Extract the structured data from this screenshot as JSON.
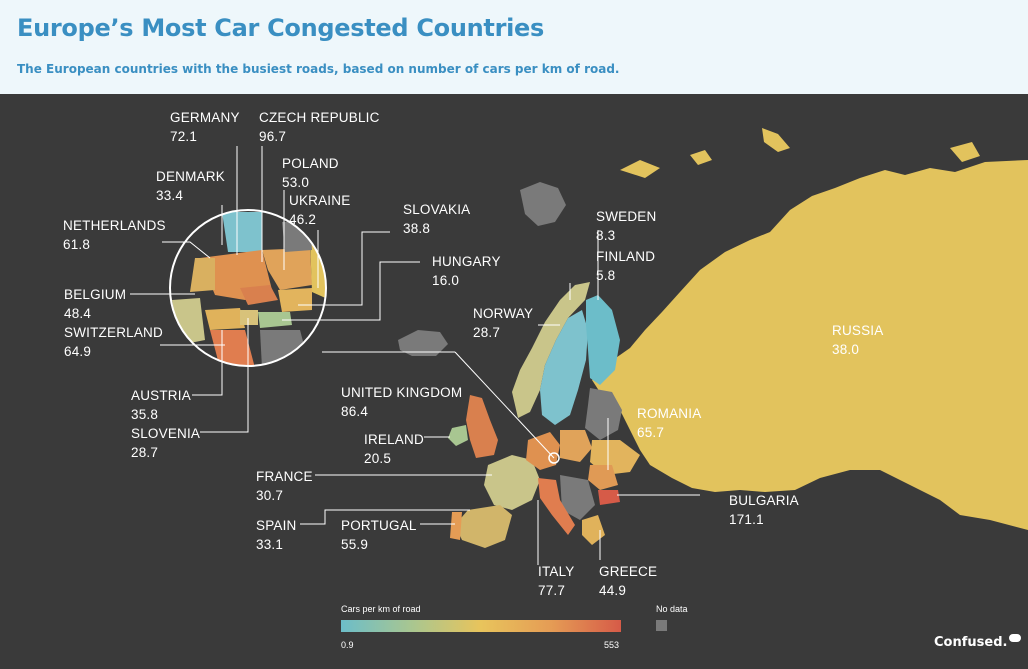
{
  "title": "Europe’s Most Car Congested Countries",
  "subtitle": "The European countries with the busiest roads, based on number of cars per km of road.",
  "countries": [
    {
      "name": "GERMANY",
      "value": "72.1"
    },
    {
      "name": "CZECH REPUBLIC",
      "value": "96.7"
    },
    {
      "name": "POLAND",
      "value": "53.0"
    },
    {
      "name": "DENMARK",
      "value": "33.4"
    },
    {
      "name": "UKRAINE",
      "value": "46.2"
    },
    {
      "name": "SLOVAKIA",
      "value": "38.8"
    },
    {
      "name": "NETHERLANDS",
      "value": "61.8"
    },
    {
      "name": "HUNGARY",
      "value": "16.0"
    },
    {
      "name": "BELGIUM",
      "value": "48.4"
    },
    {
      "name": "SWITZERLAND",
      "value": "64.9"
    },
    {
      "name": "AUSTRIA",
      "value": "35.8"
    },
    {
      "name": "SLOVENIA",
      "value": "28.7"
    },
    {
      "name": "SWEDEN",
      "value": "8.3"
    },
    {
      "name": "FINLAND",
      "value": "5.8"
    },
    {
      "name": "NORWAY",
      "value": "28.7"
    },
    {
      "name": "RUSSIA",
      "value": "38.0"
    },
    {
      "name": "UNITED KINGDOM",
      "value": "86.4"
    },
    {
      "name": "IRELAND",
      "value": "20.5"
    },
    {
      "name": "ROMANIA",
      "value": "65.7"
    },
    {
      "name": "FRANCE",
      "value": "30.7"
    },
    {
      "name": "BULGARIA",
      "value": "171.1"
    },
    {
      "name": "SPAIN",
      "value": "33.1"
    },
    {
      "name": "PORTUGAL",
      "value": "55.9"
    },
    {
      "name": "ITALY",
      "value": "77.7"
    },
    {
      "name": "GREECE",
      "value": "44.9"
    }
  ],
  "legend": {
    "title": "Cars per km of road",
    "min": "0.9",
    "max": "553",
    "nodata": "No data",
    "colors": [
      "#6cbdc9",
      "#a8c691",
      "#e8c45c",
      "#e59c55",
      "#d65b48"
    ],
    "nodata_color": "#7a7a7a"
  },
  "logo": "Confused.",
  "logo_badge": "com"
}
